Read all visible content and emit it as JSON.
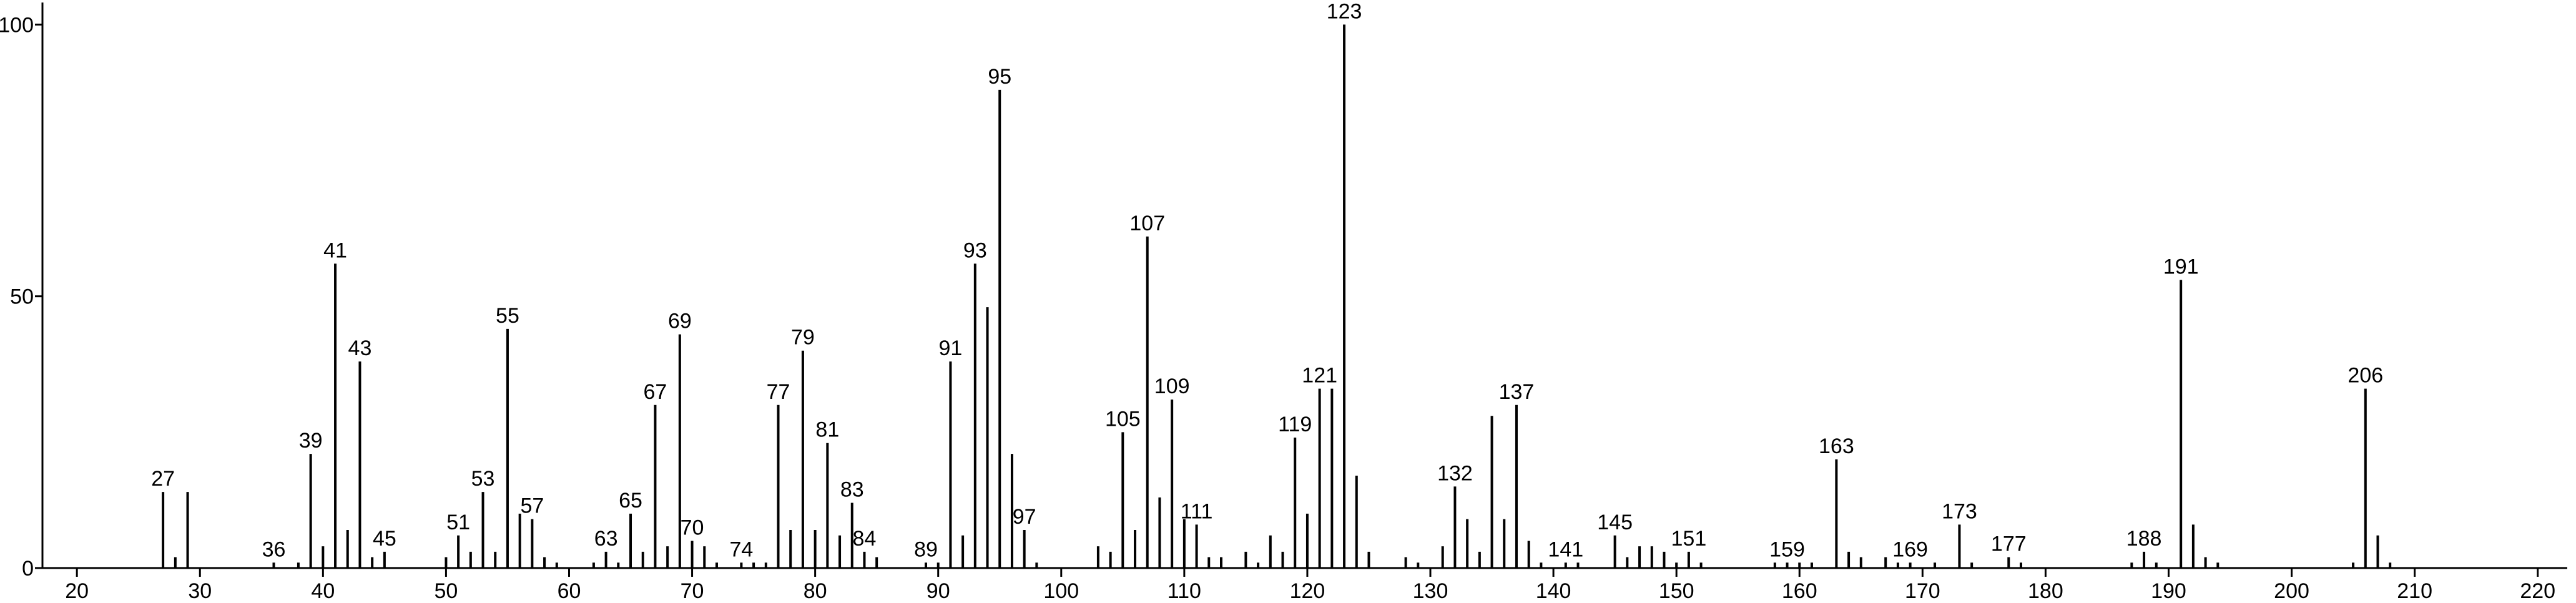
{
  "chart_data": {
    "type": "stem",
    "color": "#000000",
    "xlim": [
      17.2,
      222.4
    ],
    "ylim": [
      0,
      103.6
    ],
    "xticks": [
      20,
      30,
      40,
      50,
      60,
      70,
      80,
      90,
      100,
      110,
      120,
      130,
      140,
      150,
      160,
      170,
      180,
      190,
      200,
      210,
      220
    ],
    "yticks": [
      0,
      50,
      100
    ],
    "x": [
      27,
      28,
      29,
      36,
      38,
      39,
      40,
      41,
      42,
      43,
      44,
      45,
      50,
      51,
      52,
      53,
      54,
      55,
      56,
      57,
      58,
      59,
      62,
      63,
      64,
      65,
      66,
      67,
      68,
      69,
      70,
      71,
      72,
      74,
      75,
      76,
      77,
      78,
      79,
      80,
      81,
      82,
      83,
      84,
      85,
      89,
      90,
      91,
      92,
      93,
      94,
      95,
      96,
      97,
      98,
      103,
      104,
      105,
      106,
      107,
      108,
      109,
      110,
      111,
      112,
      113,
      115,
      116,
      117,
      118,
      119,
      120,
      121,
      122,
      123,
      124,
      125,
      128,
      129,
      131,
      132,
      133,
      134,
      135,
      136,
      137,
      138,
      139,
      141,
      142,
      145,
      146,
      147,
      148,
      149,
      150,
      151,
      152,
      158,
      159,
      160,
      161,
      163,
      164,
      165,
      167,
      168,
      169,
      171,
      173,
      174,
      177,
      178,
      187,
      188,
      189,
      191,
      192,
      193,
      194,
      205,
      206,
      207,
      208
    ],
    "values": [
      14,
      2,
      14,
      1,
      1,
      21,
      4,
      56,
      7,
      38,
      2,
      3,
      2,
      6,
      3,
      14,
      3,
      44,
      10,
      9,
      2,
      1,
      1,
      3,
      1,
      10,
      3,
      30,
      4,
      43,
      5,
      4,
      1,
      1,
      1,
      1,
      30,
      7,
      40,
      7,
      23,
      6,
      12,
      3,
      2,
      1,
      1,
      38,
      6,
      56,
      48,
      88,
      21,
      7,
      1,
      4,
      3,
      25,
      7,
      61,
      13,
      31,
      9,
      8,
      2,
      2,
      3,
      1,
      6,
      3,
      24,
      10,
      33,
      33,
      100,
      17,
      3,
      2,
      1,
      4,
      15,
      9,
      3,
      28,
      9,
      30,
      5,
      1,
      1,
      1,
      6,
      2,
      4,
      4,
      3,
      1,
      3,
      1,
      1,
      1,
      1,
      1,
      20,
      3,
      2,
      2,
      1,
      1,
      1,
      8,
      1,
      2,
      1,
      1,
      3,
      1,
      53,
      8,
      2,
      1,
      1,
      33,
      6,
      1
    ],
    "point_labels": [
      "27",
      null,
      null,
      "36",
      null,
      "39",
      null,
      "41",
      null,
      "43",
      null,
      "45",
      null,
      "51",
      null,
      "53",
      null,
      "55",
      null,
      "57",
      null,
      null,
      null,
      "63",
      null,
      "65",
      null,
      "67",
      null,
      "69",
      "70",
      null,
      null,
      "74",
      null,
      null,
      "77",
      null,
      "79",
      null,
      "81",
      null,
      "83",
      "84",
      null,
      "89",
      null,
      "91",
      null,
      "93",
      null,
      "95",
      null,
      "97",
      null,
      null,
      null,
      "105",
      null,
      "107",
      null,
      "109",
      null,
      "111",
      null,
      null,
      null,
      null,
      null,
      null,
      "119",
      null,
      "121",
      null,
      "123",
      null,
      null,
      null,
      null,
      null,
      "132",
      null,
      null,
      null,
      null,
      "137",
      null,
      null,
      "141",
      null,
      "145",
      null,
      null,
      null,
      null,
      null,
      "151",
      null,
      null,
      "159",
      null,
      null,
      "163",
      null,
      null,
      null,
      null,
      "169",
      null,
      "173",
      null,
      "177",
      null,
      null,
      "188",
      null,
      "191",
      null,
      null,
      null,
      null,
      "206",
      null,
      null
    ]
  }
}
